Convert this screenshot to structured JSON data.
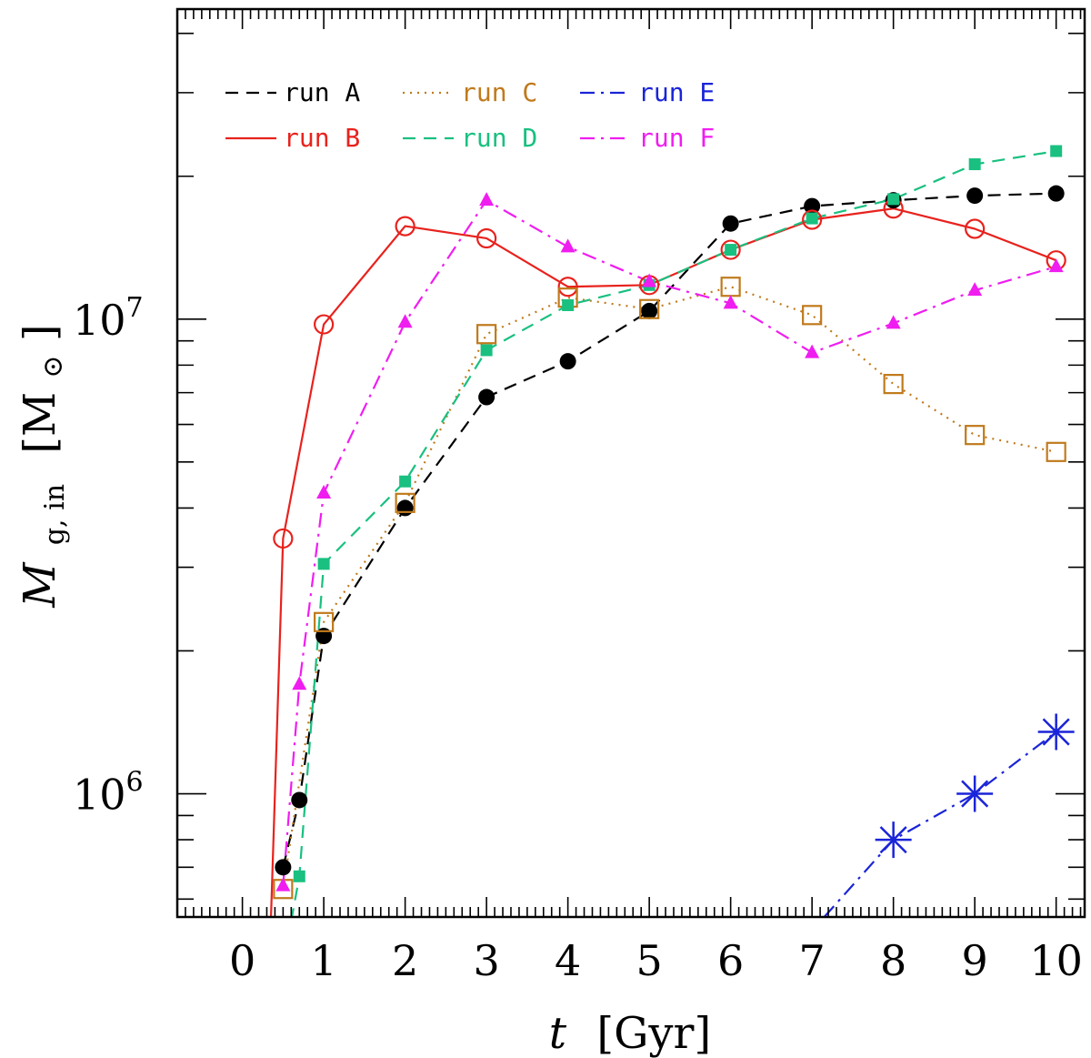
{
  "chart_data": {
    "type": "line",
    "xlabel": {
      "symbol": "t",
      "unit": "[Gyr]"
    },
    "ylabel": {
      "symbol": "M",
      "subscript": "g, in",
      "unit": "[M",
      "unit_sub": "⊙",
      "unit_close": "]"
    },
    "x_range": [
      -0.8,
      10.35
    ],
    "y_range": [
      550000,
      45000000
    ],
    "y_scale": "log",
    "x_ticks": [
      0,
      1,
      2,
      3,
      4,
      5,
      6,
      7,
      8,
      9,
      10
    ],
    "y_tick_labels": [
      {
        "value": 1000000,
        "base": "10",
        "exp": "6"
      },
      {
        "value": 10000000,
        "base": "10",
        "exp": "7"
      }
    ],
    "legend_placement": "top-left",
    "series": [
      {
        "name": "run A",
        "color": "#000000",
        "line": "dashed",
        "marker": "filled-circle",
        "x": [
          0.5,
          0.7,
          1,
          2,
          3,
          4,
          5,
          6,
          7,
          8,
          9,
          10
        ],
        "y": [
          700000,
          970000,
          2150000,
          4000000,
          6850000,
          8150000,
          10400000,
          15900000,
          17300000,
          17800000,
          18200000,
          18400000
        ]
      },
      {
        "name": "run B",
        "color": "#e8221d",
        "line": "solid",
        "marker": "open-circle",
        "x": [
          0.35,
          0.5,
          1,
          2,
          3,
          4,
          5,
          6,
          7,
          8,
          9,
          10
        ],
        "y": [
          540000,
          3450000,
          9750000,
          15700000,
          14800000,
          11700000,
          11800000,
          14000000,
          16200000,
          17100000,
          15500000,
          13300000
        ]
      },
      {
        "name": "run C",
        "color": "#c07a1c",
        "line": "dotted",
        "marker": "open-square",
        "x": [
          0.5,
          1,
          2,
          3,
          4,
          5,
          6,
          7,
          8,
          9,
          10
        ],
        "y": [
          630000,
          2300000,
          4100000,
          9300000,
          11100000,
          10500000,
          11700000,
          10200000,
          7300000,
          5700000,
          5250000
        ]
      },
      {
        "name": "run D",
        "color": "#19c080",
        "line": "dashed",
        "marker": "filled-square",
        "x": [
          0.6,
          0.7,
          1,
          2,
          3,
          4,
          5,
          6,
          7,
          8,
          9,
          10
        ],
        "y": [
          540000,
          670000,
          3050000,
          4550000,
          8600000,
          10700000,
          11800000,
          14000000,
          16300000,
          17900000,
          21200000,
          22600000
        ]
      },
      {
        "name": "run E",
        "color": "#1a24d8",
        "line": "dash-dot",
        "marker": "asterisk",
        "x": [
          7.15,
          8,
          9,
          10
        ],
        "y": [
          550000,
          800000,
          1000000,
          1350000
        ]
      },
      {
        "name": "run F",
        "color": "#f01df0",
        "line": "dash-dot",
        "marker": "filled-triangle",
        "x": [
          0.5,
          0.7,
          1,
          2,
          3,
          4,
          5,
          6,
          7,
          8,
          9,
          10
        ],
        "y": [
          640000,
          1700000,
          4300000,
          9850000,
          17800000,
          14200000,
          12000000,
          10800000,
          8500000,
          9800000,
          11500000,
          12900000
        ]
      }
    ]
  }
}
